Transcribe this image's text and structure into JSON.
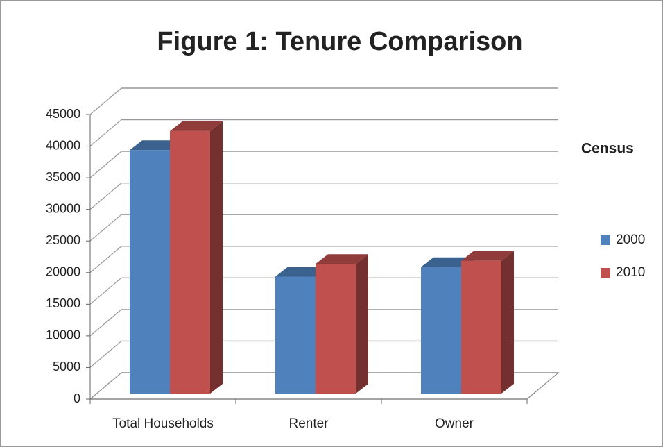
{
  "chart_data": {
    "type": "bar",
    "title": "Figure 1: Tenure Comparison",
    "categories": [
      "Total Households",
      "Renter",
      "Owner"
    ],
    "series": [
      {
        "name": "2000",
        "color": "#4f81bd",
        "values": [
          38500,
          18500,
          20000
        ]
      },
      {
        "name": "2010",
        "color": "#c0504d",
        "values": [
          41500,
          20500,
          21000
        ]
      }
    ],
    "legend_title": "Census",
    "ylim": [
      0,
      45000
    ],
    "yticks": [
      0,
      5000,
      10000,
      15000,
      20000,
      25000,
      30000,
      35000,
      40000,
      45000
    ],
    "grid": true,
    "legend": "right"
  }
}
